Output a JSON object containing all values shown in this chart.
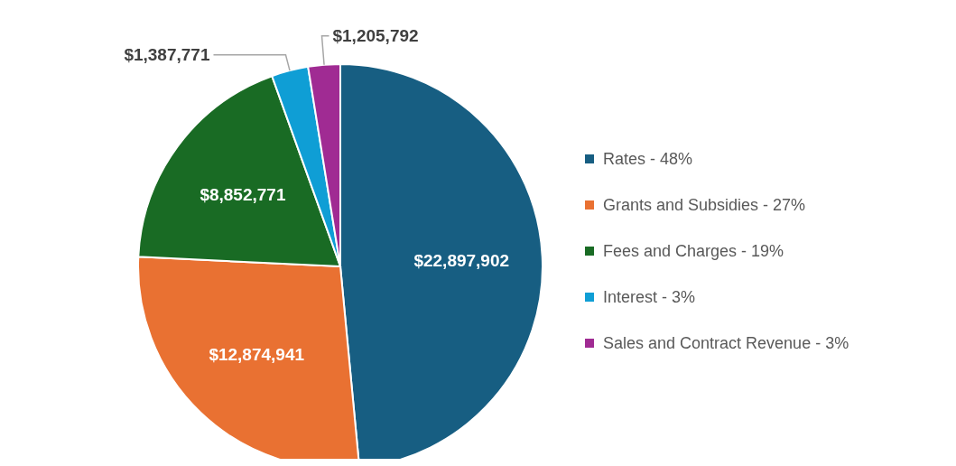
{
  "chart_data": {
    "type": "pie",
    "categories": [
      "Rates - 48%",
      "Grants and Subsidies - 27%",
      "Fees and Charges - 19%",
      "Interest - 3%",
      "Sales and Contract Revenue - 3%"
    ],
    "values": [
      22897902,
      12874941,
      8852771,
      1387771,
      1205792
    ],
    "colors": [
      "#175e82",
      "#e97132",
      "#196b24",
      "#0f9ed5",
      "#a02b93"
    ],
    "value_labels": [
      "$22,897,902",
      "$12,874,941",
      "$8,852,771",
      "$1,387,771",
      "$1,205,792"
    ],
    "legend": "right"
  }
}
